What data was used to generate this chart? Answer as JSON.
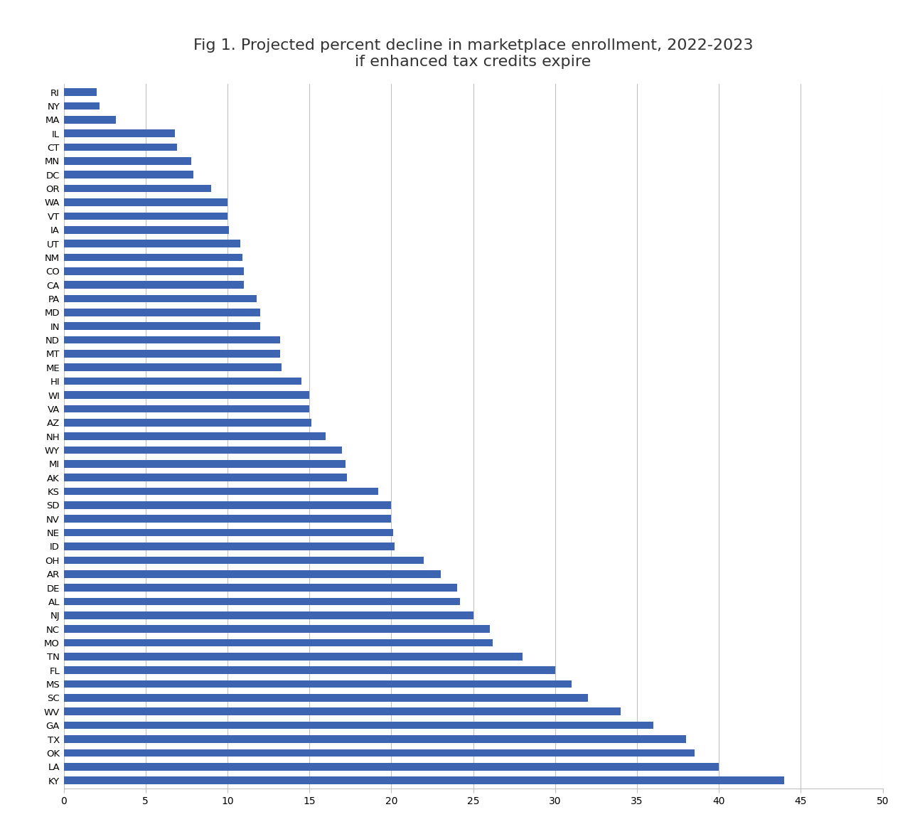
{
  "title": "Fig 1. Projected percent decline in marketplace enrollment, 2022-2023\nif enhanced tax credits expire",
  "states": [
    "RI",
    "NY",
    "MA",
    "IL",
    "CT",
    "MN",
    "DC",
    "OR",
    "WA",
    "VT",
    "IA",
    "UT",
    "NM",
    "CO",
    "CA",
    "PA",
    "MD",
    "IN",
    "ND",
    "MT",
    "ME",
    "HI",
    "WI",
    "VA",
    "AZ",
    "NH",
    "WY",
    "MI",
    "AK",
    "KS",
    "SD",
    "NV",
    "NE",
    "ID",
    "OH",
    "AR",
    "DE",
    "AL",
    "NJ",
    "NC",
    "MO",
    "TN",
    "FL",
    "MS",
    "SC",
    "WV",
    "GA",
    "TX",
    "OK",
    "LA",
    "KY"
  ],
  "values": [
    2.0,
    2.2,
    3.2,
    6.8,
    6.9,
    7.8,
    7.9,
    9.0,
    10.0,
    10.0,
    10.1,
    10.8,
    10.9,
    11.0,
    11.0,
    11.8,
    12.0,
    12.0,
    13.2,
    13.2,
    13.3,
    14.5,
    15.0,
    15.0,
    15.1,
    16.0,
    17.0,
    17.2,
    17.3,
    19.2,
    20.0,
    20.0,
    20.1,
    20.2,
    22.0,
    23.0,
    24.0,
    24.2,
    25.0,
    26.0,
    26.2,
    28.0,
    30.0,
    31.0,
    32.0,
    34.0,
    36.0,
    38.0,
    38.5,
    40.0,
    44.0
  ],
  "bar_color": "#3C64B1",
  "xlim": [
    0,
    50
  ],
  "xticks": [
    0,
    5,
    10,
    15,
    20,
    25,
    30,
    35,
    40,
    45,
    50
  ],
  "background_color": "#FFFFFF",
  "title_fontsize": 16,
  "grid_color": "#C0C0C0"
}
